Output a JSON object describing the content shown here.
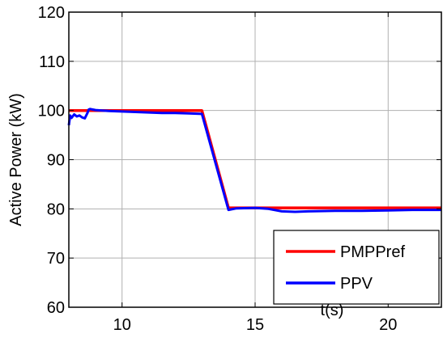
{
  "chart_data": {
    "type": "line",
    "title": "",
    "xlabel": "t(s)",
    "ylabel": "Active Power (kW)",
    "xlim": [
      8,
      22
    ],
    "ylim": [
      60,
      120
    ],
    "xticks": [
      10,
      15,
      20
    ],
    "yticks": [
      60,
      70,
      80,
      90,
      100,
      110,
      120
    ],
    "grid": true,
    "legend_position": "bottom-right",
    "series": [
      {
        "name": "PMPPref",
        "color": "#ff0000",
        "x": [
          8,
          13,
          14,
          22
        ],
        "y": [
          100,
          100,
          80.2,
          80.2
        ]
      },
      {
        "name": "PPV",
        "color": "#0000ff",
        "x": [
          8,
          8.05,
          8.1,
          8.2,
          8.3,
          8.4,
          8.5,
          8.6,
          8.7,
          8.75,
          8.8,
          9,
          9.5,
          10,
          11,
          11.5,
          12,
          12.5,
          13,
          14,
          14.3,
          15,
          15.5,
          16,
          16.5,
          17,
          18,
          19,
          20,
          21,
          22
        ],
        "y": [
          97,
          99,
          98.5,
          99.2,
          98.8,
          99.0,
          98.6,
          98.4,
          99.5,
          100.2,
          100.3,
          100.1,
          99.9,
          99.8,
          99.6,
          99.5,
          99.5,
          99.4,
          99.3,
          79.8,
          80.1,
          80.2,
          80.0,
          79.5,
          79.4,
          79.5,
          79.6,
          79.6,
          79.7,
          79.8,
          79.8
        ]
      }
    ]
  }
}
